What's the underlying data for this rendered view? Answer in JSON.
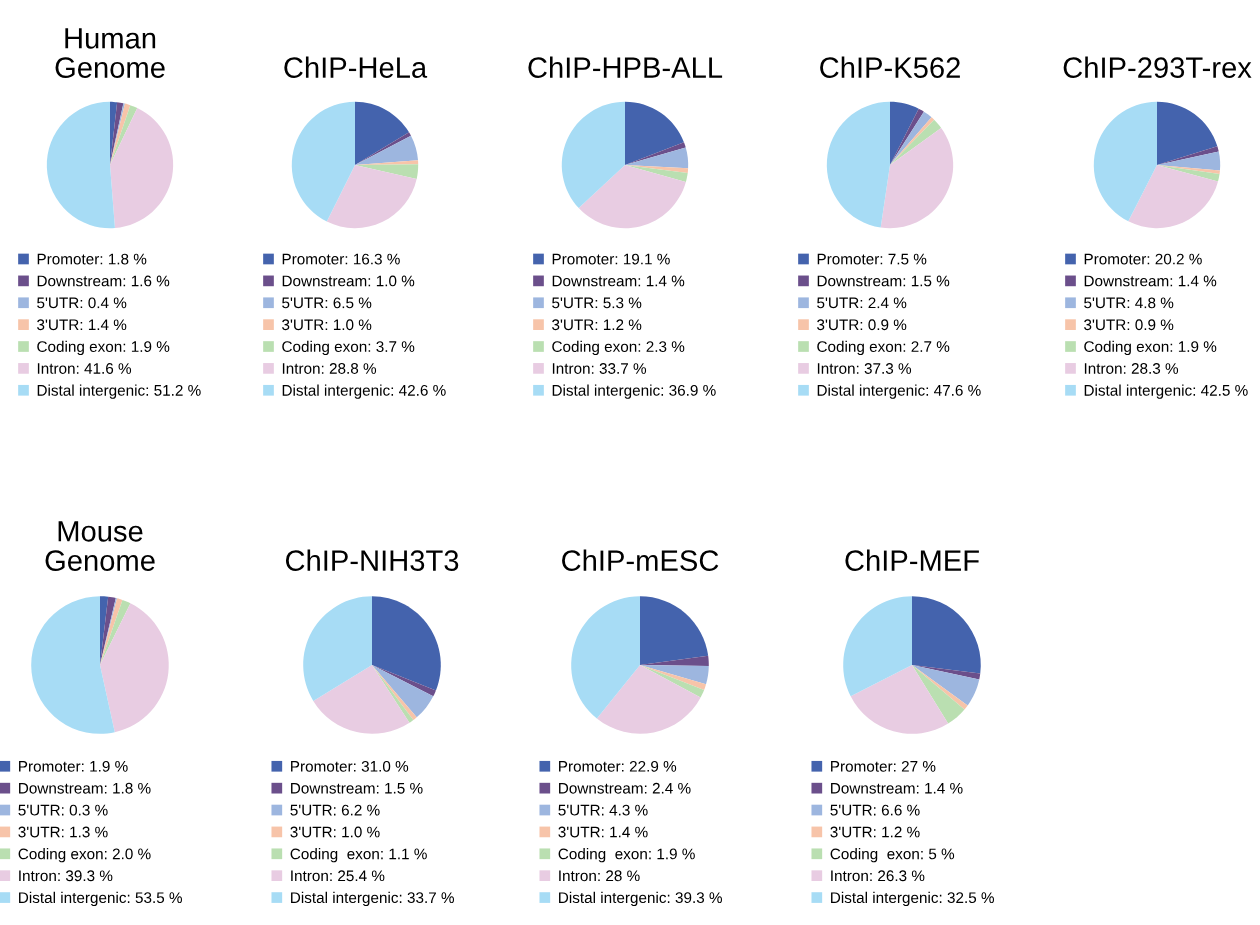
{
  "chart_data": [
    {
      "type": "pie",
      "title": "Human\nGenome",
      "legend": "bottom",
      "categories": [
        "Promoter",
        "Downstream",
        "5'UTR",
        "3'UTR",
        "Coding exon",
        "Intron",
        "Distal intergenic"
      ],
      "values": [
        1.8,
        1.6,
        0.4,
        1.4,
        1.9,
        41.6,
        51.2
      ],
      "value_labels": [
        "1.8 %",
        "1.6 %",
        "0.4 %",
        "1.4 %",
        "1.9 %",
        "41.6 %",
        "51.2 %"
      ],
      "colors": [
        "#4463ad",
        "#6b4f8b",
        "#9db6df",
        "#f7c4a9",
        "#badfb1",
        "#e8cce2",
        "#a7dcf5"
      ]
    },
    {
      "type": "pie",
      "title": "ChIP-HeLa",
      "legend": "bottom",
      "categories": [
        "Promoter",
        "Downstream",
        "5'UTR",
        "3'UTR",
        "Coding exon",
        "Intron",
        "Distal intergenic"
      ],
      "values": [
        16.3,
        1.0,
        6.5,
        1.0,
        3.7,
        28.8,
        42.6
      ],
      "value_labels": [
        "16.3 %",
        "1.0 %",
        "6.5 %",
        "1.0 %",
        "3.7 %",
        "28.8 %",
        "42.6 %"
      ],
      "colors": [
        "#4463ad",
        "#6b4f8b",
        "#9db6df",
        "#f7c4a9",
        "#badfb1",
        "#e8cce2",
        "#a7dcf5"
      ]
    },
    {
      "type": "pie",
      "title": "ChIP-HPB-ALL",
      "legend": "bottom",
      "categories": [
        "Promoter",
        "Downstream",
        "5'UTR",
        "3'UTR",
        "Coding exon",
        "Intron",
        "Distal intergenic"
      ],
      "values": [
        19.1,
        1.4,
        5.3,
        1.2,
        2.3,
        33.7,
        36.9
      ],
      "value_labels": [
        "19.1 %",
        "1.4 %",
        "5.3 %",
        "1.2 %",
        "2.3 %",
        "33.7 %",
        "36.9 %"
      ],
      "colors": [
        "#4463ad",
        "#6b4f8b",
        "#9db6df",
        "#f7c4a9",
        "#badfb1",
        "#e8cce2",
        "#a7dcf5"
      ]
    },
    {
      "type": "pie",
      "title": "ChIP-K562",
      "legend": "bottom",
      "categories": [
        "Promoter",
        "Downstream",
        "5'UTR",
        "3'UTR",
        "Coding exon",
        "Intron",
        "Distal intergenic"
      ],
      "values": [
        7.5,
        1.5,
        2.4,
        0.9,
        2.7,
        37.3,
        47.6
      ],
      "value_labels": [
        "7.5 %",
        "1.5 %",
        "2.4 %",
        "0.9 %",
        "2.7 %",
        "37.3 %",
        "47.6 %"
      ],
      "colors": [
        "#4463ad",
        "#6b4f8b",
        "#9db6df",
        "#f7c4a9",
        "#badfb1",
        "#e8cce2",
        "#a7dcf5"
      ]
    },
    {
      "type": "pie",
      "title": "ChIP-293T-rex",
      "legend": "bottom",
      "categories": [
        "Promoter",
        "Downstream",
        "5'UTR",
        "3'UTR",
        "Coding exon",
        "Intron",
        "Distal intergenic"
      ],
      "values": [
        20.2,
        1.4,
        4.8,
        0.9,
        1.9,
        28.3,
        42.5
      ],
      "value_labels": [
        "20.2 %",
        "1.4 %",
        "4.8 %",
        "0.9 %",
        "1.9 %",
        "28.3 %",
        "42.5 %"
      ],
      "colors": [
        "#4463ad",
        "#6b4f8b",
        "#9db6df",
        "#f7c4a9",
        "#badfb1",
        "#e8cce2",
        "#a7dcf5"
      ]
    },
    {
      "type": "pie",
      "title": "Mouse\nGenome",
      "legend": "bottom",
      "categories": [
        "Promoter",
        "Downstream",
        "5'UTR",
        "3'UTR",
        "Coding exon",
        "Intron",
        "Distal intergenic"
      ],
      "values": [
        1.9,
        1.8,
        0.3,
        1.3,
        2.0,
        39.3,
        53.5
      ],
      "value_labels": [
        "1.9 %",
        "1.8 %",
        "0.3 %",
        "1.3 %",
        "2.0 %",
        "39.3 %",
        "53.5 %"
      ],
      "colors": [
        "#4463ad",
        "#6b4f8b",
        "#9db6df",
        "#f7c4a9",
        "#badfb1",
        "#e8cce2",
        "#a7dcf5"
      ]
    },
    {
      "type": "pie",
      "title": "ChIP-NIH3T3",
      "legend": "bottom",
      "categories": [
        "Promoter",
        "Downstream",
        "5'UTR",
        "3'UTR",
        "Coding  exon",
        "Intron",
        "Distal intergenic"
      ],
      "values": [
        31.0,
        1.5,
        6.2,
        1.0,
        1.1,
        25.4,
        33.7
      ],
      "value_labels": [
        "31.0 %",
        "1.5 %",
        "6.2 %",
        "1.0 %",
        "1.1 %",
        "25.4 %",
        "33.7 %"
      ],
      "colors": [
        "#4463ad",
        "#6b4f8b",
        "#9db6df",
        "#f7c4a9",
        "#badfb1",
        "#e8cce2",
        "#a7dcf5"
      ]
    },
    {
      "type": "pie",
      "title": "ChIP-mESC",
      "legend": "bottom",
      "categories": [
        "Promoter",
        "Downstream",
        "5'UTR",
        "3'UTR",
        "Coding  exon",
        "Intron",
        "Distal intergenic"
      ],
      "values": [
        22.9,
        2.4,
        4.3,
        1.4,
        1.9,
        28,
        39.3
      ],
      "value_labels": [
        "22.9 %",
        "2.4 %",
        "4.3 %",
        "1.4 %",
        "1.9 %",
        "28 %",
        "39.3 %"
      ],
      "colors": [
        "#4463ad",
        "#6b4f8b",
        "#9db6df",
        "#f7c4a9",
        "#badfb1",
        "#e8cce2",
        "#a7dcf5"
      ]
    },
    {
      "type": "pie",
      "title": "ChIP-MEF",
      "legend": "bottom",
      "categories": [
        "Promoter",
        "Downstream",
        "5'UTR",
        "3'UTR",
        "Coding  exon",
        "Intron",
        "Distal intergenic"
      ],
      "values": [
        27,
        1.4,
        6.6,
        1.2,
        5,
        26.3,
        32.5
      ],
      "value_labels": [
        "27 %",
        "1.4 %",
        "6.6 %",
        "1.2 %",
        "5 %",
        "26.3 %",
        "32.5 %"
      ],
      "colors": [
        "#4463ad",
        "#6b4f8b",
        "#9db6df",
        "#f7c4a9",
        "#badfb1",
        "#e8cce2",
        "#a7dcf5"
      ]
    }
  ]
}
